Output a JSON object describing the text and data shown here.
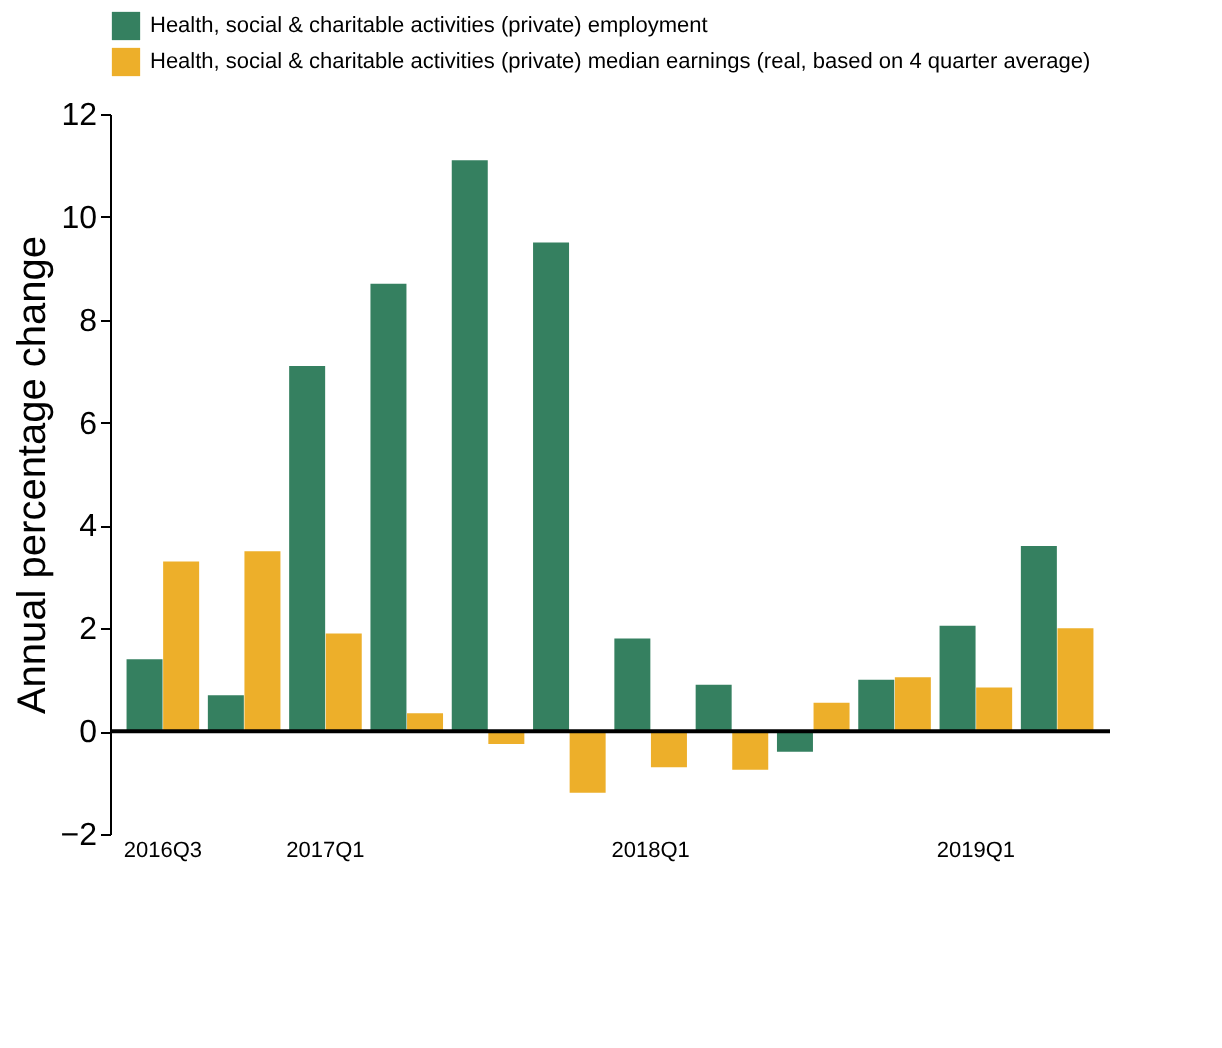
{
  "chart_data": {
    "type": "bar",
    "ylabel": "Annual percentage change",
    "categories": [
      "2016Q3",
      null,
      "2017Q1",
      null,
      null,
      null,
      "2018Q1",
      null,
      null,
      null,
      "2019Q1",
      null
    ],
    "series": [
      {
        "name": "Health, social & charitable activities (private) employment",
        "color": "#358060",
        "values": [
          1.4,
          0.7,
          7.1,
          8.7,
          11.1,
          9.5,
          1.8,
          0.9,
          -0.4,
          1.0,
          2.05,
          3.6
        ]
      },
      {
        "name": "Health, social & charitable activities (private) median earnings (real, based on 4 quarter average)",
        "color": "#edaf2a",
        "values": [
          3.3,
          3.5,
          1.9,
          0.35,
          -0.25,
          -1.2,
          -0.7,
          -0.75,
          0.55,
          1.05,
          0.85,
          2.0
        ]
      }
    ],
    "ylim": [
      -2,
      12
    ],
    "yticks": [
      -2,
      0,
      2,
      4,
      6,
      8,
      10,
      12
    ],
    "ref_lines": [
      {
        "axis": "y",
        "value": 0,
        "color": "#000000"
      }
    ],
    "legend": "top",
    "grid": false
  }
}
